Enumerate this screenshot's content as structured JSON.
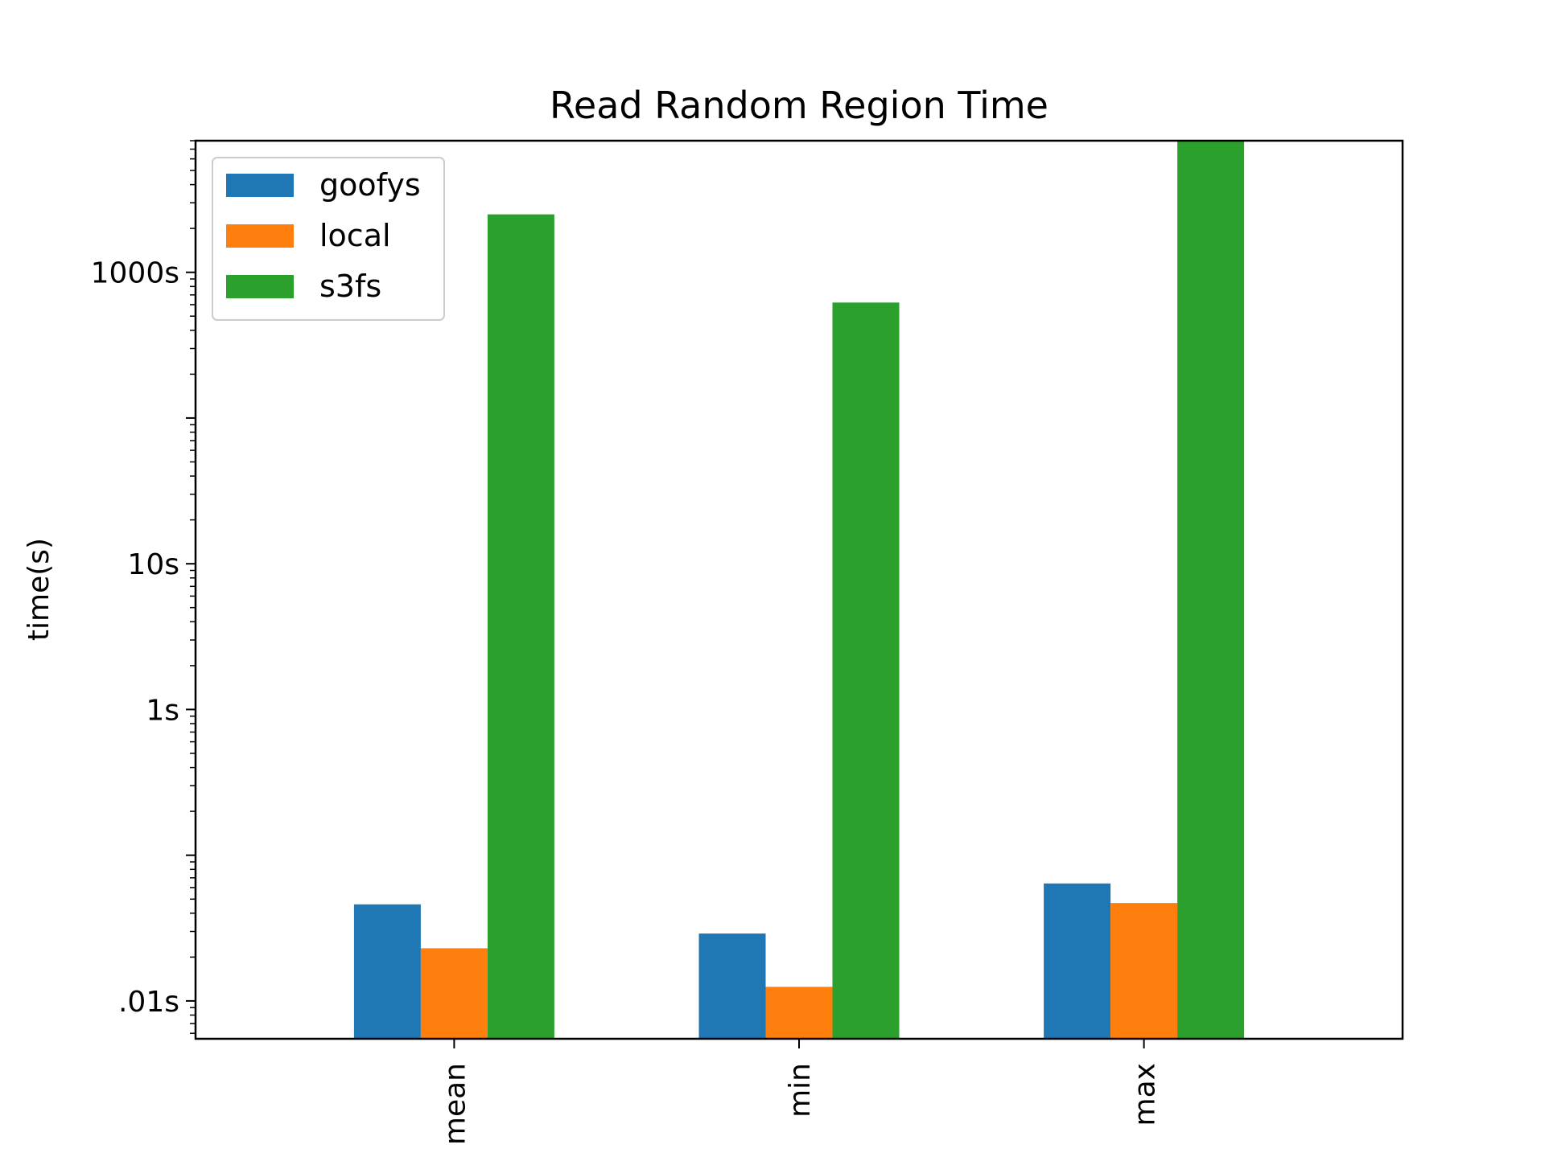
{
  "chart_data": {
    "type": "bar",
    "title": "Read Random Region Time",
    "xlabel": "",
    "ylabel": "time(s)",
    "yscale": "log",
    "ylim": [
      0.0055,
      8000
    ],
    "categories": [
      "mean",
      "min",
      "max"
    ],
    "series": [
      {
        "name": "goofys",
        "color": "#1f77b4",
        "values": [
          0.046,
          0.029,
          0.064
        ]
      },
      {
        "name": "local",
        "color": "#ff7f0e",
        "values": [
          0.023,
          0.0125,
          0.047
        ]
      },
      {
        "name": "s3fs",
        "color": "#2ca02c",
        "values": [
          2500,
          620,
          9000
        ]
      }
    ],
    "yticks": [
      {
        "value": 0.01,
        "label": ".01s"
      },
      {
        "value": 1,
        "label": "1s"
      },
      {
        "value": 10,
        "label": "10s"
      },
      {
        "value": 1000,
        "label": "1000s"
      }
    ],
    "legend": {
      "position": "top-left"
    },
    "grid": false
  }
}
